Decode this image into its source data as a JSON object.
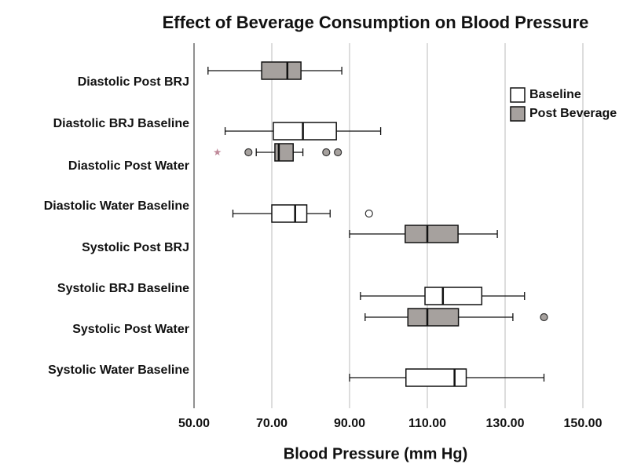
{
  "chart_data": {
    "type": "boxplot",
    "title": "Effect of Beverage Consumption on Blood Pressure",
    "x_label": "Blood Pressure (mm Hg)",
    "categories": [
      "Diastolic Post BRJ",
      "Diastolic BRJ Baseline",
      "Diastolic Post Water",
      "Diastolic Water Baseline",
      "Systolic Post BRJ",
      "Systolic BRJ Baseline",
      "Systolic Post Water",
      "Systolic Water Baseline"
    ],
    "series": [
      {
        "name": "Baseline",
        "color": "#ffffff"
      },
      {
        "name": "Post Beverage",
        "color": "#a6a19e"
      }
    ],
    "boxes": [
      {
        "series": 1,
        "min": 53.6,
        "q1": 67.4,
        "median": 74,
        "q3": 77.5,
        "max": 88,
        "outliers": [],
        "extremes": []
      },
      {
        "series": 0,
        "min": 58,
        "q1": 70.4,
        "median": 78,
        "q3": 86.6,
        "max": 98,
        "outliers": [],
        "extremes": []
      },
      {
        "series": 1,
        "min": 66,
        "q1": 70.8,
        "median": 71.8,
        "q3": 75.5,
        "max": 78,
        "outliers": [
          64,
          84,
          87
        ],
        "extremes": [
          56
        ]
      },
      {
        "series": 0,
        "min": 60,
        "q1": 70,
        "median": 76,
        "q3": 79,
        "max": 85,
        "outliers": [
          95
        ],
        "extremes": []
      },
      {
        "series": 1,
        "min": 90,
        "q1": 104.3,
        "median": 110,
        "q3": 117.9,
        "max": 128,
        "outliers": [],
        "extremes": []
      },
      {
        "series": 0,
        "min": 92.8,
        "q1": 109.4,
        "median": 114,
        "q3": 124,
        "max": 135,
        "outliers": [],
        "extremes": []
      },
      {
        "series": 1,
        "min": 94,
        "q1": 105,
        "median": 110,
        "q3": 118,
        "max": 132,
        "outliers": [
          140
        ],
        "extremes": []
      },
      {
        "series": 0,
        "min": 90,
        "q1": 104.5,
        "median": 117,
        "q3": 120,
        "max": 140,
        "outliers": [],
        "extremes": []
      }
    ],
    "xlim": [
      50,
      150
    ],
    "xticks": [
      {
        "value": 50,
        "label": "50.00"
      },
      {
        "value": 70,
        "label": "70.00"
      },
      {
        "value": 90,
        "label": "90.00"
      },
      {
        "value": 110,
        "label": "110.00"
      },
      {
        "value": 130,
        "label": "130.00"
      },
      {
        "value": 150,
        "label": "150.00"
      }
    ],
    "grid": true,
    "extreme_color": "#c08a9a"
  }
}
